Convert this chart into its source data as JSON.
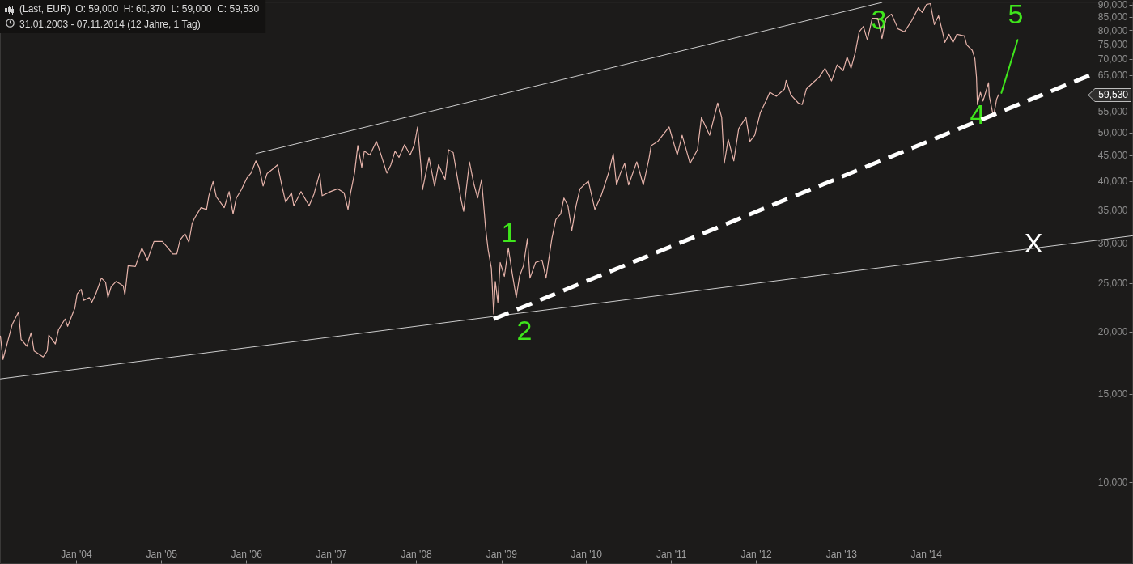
{
  "chart_data": {
    "type": "line",
    "title": "(Last, EUR)  O: 59,000  H: 60,370  L: 59,000  C: 59,530",
    "subtitle": "31.01.2003 - 07.11.2014 (12 Jahre, 1 Tag)",
    "log": true,
    "xlim": [
      "2003-02-08",
      "2016-06-05"
    ],
    "xticks": [
      {
        "value": "2004-01-01",
        "label": "Jan '04"
      },
      {
        "value": "2005-01-01",
        "label": "Jan '05"
      },
      {
        "value": "2006-01-01",
        "label": "Jan '06"
      },
      {
        "value": "2007-01-01",
        "label": "Jan '07"
      },
      {
        "value": "2008-01-01",
        "label": "Jan '08"
      },
      {
        "value": "2009-01-01",
        "label": "Jan '09"
      },
      {
        "value": "2010-01-01",
        "label": "Jan '10"
      },
      {
        "value": "2011-01-01",
        "label": "Jan '11"
      },
      {
        "value": "2012-01-01",
        "label": "Jan '12"
      },
      {
        "value": "2013-01-01",
        "label": "Jan '13"
      },
      {
        "value": "2014-01-01",
        "label": "Jan '14"
      }
    ],
    "ylim": [
      6880,
      91100
    ],
    "yticks": [
      {
        "value": 10000,
        "label": "10,000"
      },
      {
        "value": 15000,
        "label": "15,000"
      },
      {
        "value": 20000,
        "label": "20,000"
      },
      {
        "value": 25000,
        "label": "25,000"
      },
      {
        "value": 30000,
        "label": "30,000"
      },
      {
        "value": 35000,
        "label": "35,000"
      },
      {
        "value": 40000,
        "label": "40,000"
      },
      {
        "value": 45000,
        "label": "45,000"
      },
      {
        "value": 50000,
        "label": "50,000"
      },
      {
        "value": 55000,
        "label": "55,000"
      },
      {
        "value": 65000,
        "label": "65,000"
      },
      {
        "value": 70000,
        "label": "70,000"
      },
      {
        "value": 75000,
        "label": "75,000"
      },
      {
        "value": 80000,
        "label": "80,000"
      },
      {
        "value": 85000,
        "label": "85,000"
      },
      {
        "value": 90000,
        "label": "90,000"
      }
    ],
    "series": [
      {
        "color": "#e6b3aa",
        "x": [
          "2003-02-08",
          "2003-02-19",
          "2003-03-31",
          "2003-04-27",
          "2003-05-08",
          "2003-06-02",
          "2003-06-20",
          "2003-07-03",
          "2003-08-11",
          "2003-08-28",
          "2003-09-04",
          "2003-10-02",
          "2003-10-16",
          "2003-11-13",
          "2003-11-24",
          "2003-12-25",
          "2004-01-04",
          "2004-01-21",
          "2004-02-01",
          "2004-02-25",
          "2004-03-07",
          "2004-03-24",
          "2004-04-17",
          "2004-05-05",
          "2004-05-15",
          "2004-05-29",
          "2004-06-19",
          "2004-07-20",
          "2004-07-27",
          "2004-08-10",
          "2004-09-10",
          "2004-10-08",
          "2004-11-01",
          "2004-11-29",
          "2005-01-04",
          "2005-01-28",
          "2005-02-18",
          "2005-03-07",
          "2005-03-21",
          "2005-04-11",
          "2005-04-28",
          "2005-05-12",
          "2005-05-22",
          "2005-06-19",
          "2005-07-13",
          "2005-07-23",
          "2005-08-10",
          "2005-08-24",
          "2005-09-10",
          "2005-09-27",
          "2005-10-18",
          "2005-11-04",
          "2005-11-18",
          "2005-12-09",
          "2006-01-03",
          "2006-01-20",
          "2006-02-10",
          "2006-02-24",
          "2006-03-13",
          "2006-03-30",
          "2006-04-24",
          "2006-05-14",
          "2006-06-01",
          "2006-06-18",
          "2006-07-13",
          "2006-07-23",
          "2006-08-23",
          "2006-09-27",
          "2006-10-18",
          "2006-11-11",
          "2006-11-22",
          "2006-12-27",
          "2007-01-27",
          "2007-02-24",
          "2007-03-13",
          "2007-03-24",
          "2007-04-10",
          "2007-04-24",
          "2007-05-11",
          "2007-05-22",
          "2007-06-15",
          "2007-07-13",
          "2007-07-30",
          "2007-08-27",
          "2007-09-13",
          "2007-10-01",
          "2007-10-18",
          "2007-11-11",
          "2007-12-05",
          "2007-12-23",
          "2008-01-06",
          "2008-01-20",
          "2008-01-27",
          "2008-02-24",
          "2008-03-19",
          "2008-04-05",
          "2008-05-03",
          "2008-05-18",
          "2008-06-07",
          "2008-07-12",
          "2008-07-22",
          "2008-08-16",
          "2008-09-03",
          "2008-09-20",
          "2008-10-07",
          "2008-10-24",
          "2008-11-04",
          "2008-11-18",
          "2008-11-28",
          "2008-12-05",
          "2008-12-16",
          "2008-12-26",
          "2009-01-13",
          "2009-01-30",
          "2009-02-16",
          "2009-03-05",
          "2009-03-19",
          "2009-04-05",
          "2009-04-22",
          "2009-05-03",
          "2009-05-27",
          "2009-06-24",
          "2009-07-11",
          "2009-08-05",
          "2009-08-22",
          "2009-09-12",
          "2009-09-26",
          "2009-10-13",
          "2009-10-30",
          "2009-11-17",
          "2009-12-04",
          "2010-01-09",
          "2010-02-06",
          "2010-03-05",
          "2010-04-05",
          "2010-04-26",
          "2010-05-10",
          "2010-05-27",
          "2010-06-14",
          "2010-07-01",
          "2010-08-05",
          "2010-09-02",
          "2010-09-26",
          "2010-10-06",
          "2010-11-03",
          "2010-12-22",
          "2011-01-26",
          "2011-02-16",
          "2011-03-22",
          "2011-04-23",
          "2011-05-10",
          "2011-06-14",
          "2011-07-19",
          "2011-08-05",
          "2011-08-16",
          "2011-09-02",
          "2011-09-26",
          "2011-10-17",
          "2011-11-17",
          "2011-12-04",
          "2011-12-25",
          "2012-01-18",
          "2012-02-11",
          "2012-02-28",
          "2012-03-27",
          "2012-05-01",
          "2012-05-08",
          "2012-05-28",
          "2012-06-29",
          "2012-07-16",
          "2012-08-03",
          "2012-08-31",
          "2012-09-28",
          "2012-10-22",
          "2012-11-19",
          "2012-12-13",
          "2013-01-08",
          "2013-01-25",
          "2013-02-11",
          "2013-03-01",
          "2013-03-18",
          "2013-04-05",
          "2013-04-22",
          "2013-05-13",
          "2013-06-06",
          "2013-06-24",
          "2013-07-11",
          "2013-08-04",
          "2013-09-01",
          "2013-09-28",
          "2013-10-30",
          "2013-11-27",
          "2013-12-14",
          "2014-01-01",
          "2014-01-18",
          "2014-02-04",
          "2014-02-22",
          "2014-03-11",
          "2014-03-21",
          "2014-04-08",
          "2014-04-25",
          "2014-05-12",
          "2014-06-13",
          "2014-06-23",
          "2014-07-17",
          "2014-07-28",
          "2014-08-04",
          "2014-08-08",
          "2014-08-21",
          "2014-09-01",
          "2014-09-25",
          "2014-09-28",
          "2014-10-16",
          "2014-10-30",
          "2014-11-07"
        ],
        "values": [
          19600,
          17600,
          20700,
          21900,
          19300,
          18700,
          19900,
          18300,
          17800,
          18300,
          19700,
          18900,
          20200,
          21200,
          20500,
          22300,
          23800,
          24300,
          23100,
          23400,
          22900,
          23800,
          25600,
          25100,
          23400,
          24600,
          25200,
          24700,
          23700,
          27100,
          27000,
          29400,
          27800,
          30300,
          30300,
          29400,
          28600,
          28600,
          30500,
          31400,
          30200,
          32900,
          33700,
          35400,
          35100,
          37400,
          39900,
          37200,
          36300,
          35400,
          38100,
          34400,
          37000,
          38400,
          40600,
          41500,
          43900,
          42600,
          39100,
          41400,
          42300,
          43100,
          39300,
          36300,
          37900,
          35700,
          38100,
          35700,
          37700,
          41400,
          37400,
          38100,
          38600,
          37900,
          35100,
          37900,
          41500,
          47100,
          42600,
          45900,
          45100,
          48000,
          45600,
          41500,
          43100,
          45900,
          44600,
          47300,
          45100,
          47300,
          51300,
          43100,
          38400,
          44600,
          39100,
          43100,
          40300,
          46200,
          45600,
          36500,
          34800,
          43700,
          39600,
          37000,
          40300,
          32300,
          29200,
          26800,
          21700,
          25200,
          22900,
          27500,
          25800,
          29400,
          26100,
          23400,
          25800,
          27100,
          30700,
          25600,
          27500,
          27800,
          25600,
          30700,
          33500,
          34400,
          37000,
          35700,
          31900,
          35700,
          38600,
          40000,
          35100,
          37400,
          41400,
          45400,
          39300,
          41500,
          43400,
          39300,
          43700,
          39300,
          44200,
          47100,
          48000,
          51300,
          45100,
          49400,
          43400,
          46200,
          53600,
          49400,
          57300,
          53600,
          43400,
          48500,
          43900,
          50900,
          53600,
          48000,
          49400,
          54800,
          57800,
          60200,
          59100,
          61100,
          63600,
          59500,
          57300,
          56900,
          61100,
          62900,
          64600,
          67200,
          63400,
          68300,
          66500,
          70800,
          67200,
          72200,
          79500,
          81500,
          76600,
          84600,
          84600,
          77100,
          84600,
          86200,
          80600,
          79500,
          83700,
          88800,
          86900,
          90100,
          90500,
          82200,
          85600,
          79500,
          75700,
          78600,
          75700,
          78600,
          78000,
          74900,
          73000,
          70300,
          64600,
          56900,
          60200,
          57800,
          62900,
          59100,
          53800,
          58400,
          59530
        ]
      },
      {
        "color": "#cccccc",
        "x": [
          "2006-02-10",
          "2013-06-24"
        ],
        "values": [
          45400,
          91000
        ]
      },
      {
        "color": "#cccccc",
        "x": [
          "2003-02-08",
          "2016-06-05"
        ],
        "values": [
          16100,
          31100
        ]
      },
      {
        "color": "#ffffff",
        "line_style": "dashed",
        "x": [
          "2008-11-28",
          "2015-12-19"
        ],
        "values": [
          21200,
          65500
        ]
      },
      {
        "color": "#3fe51c",
        "x": [
          "2014-11-19",
          "2015-01-28"
        ],
        "values": [
          60000,
          76600
        ]
      }
    ],
    "annotations": [
      "1",
      "2",
      "3",
      "4",
      "5",
      "X",
      "59,530"
    ]
  }
}
